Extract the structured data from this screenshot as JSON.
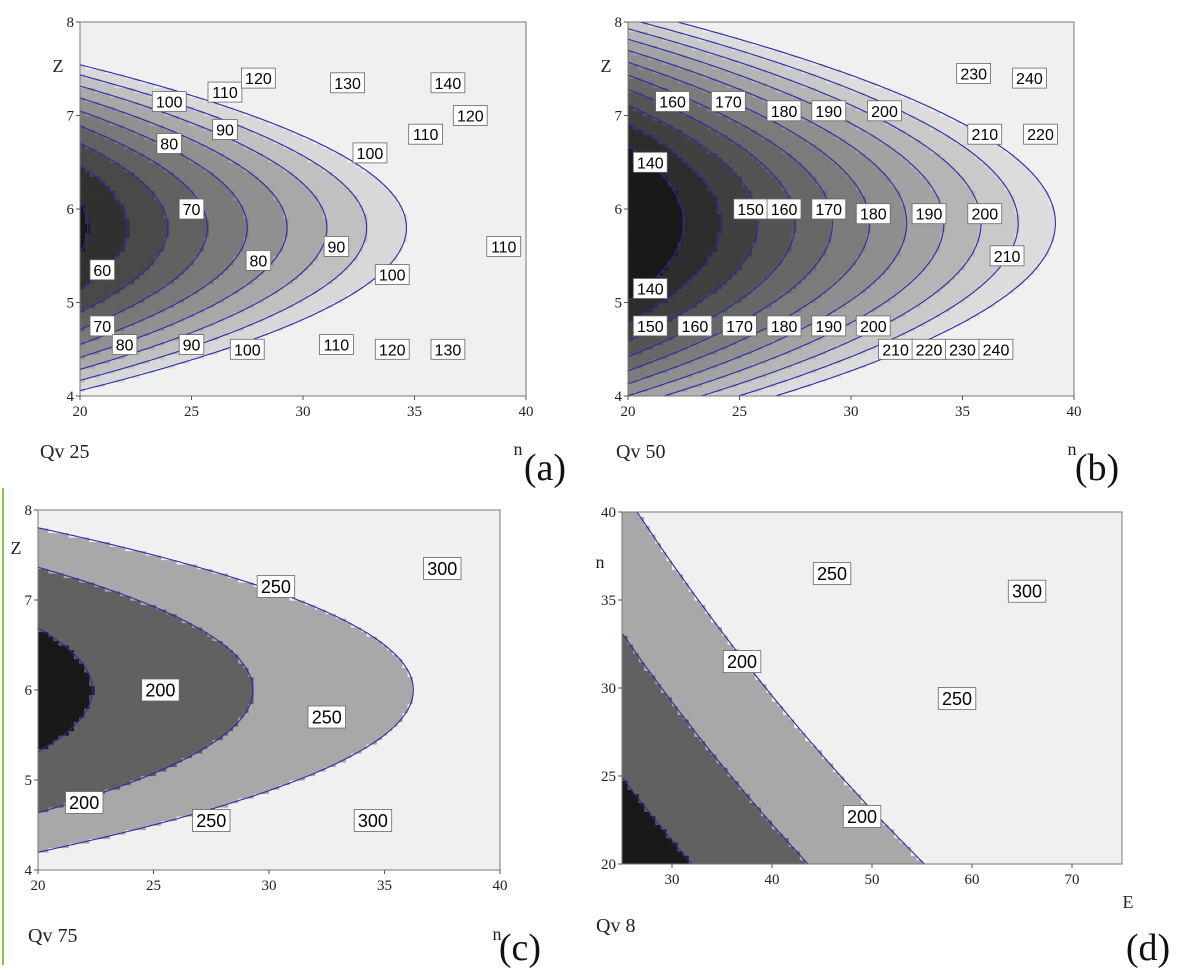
{
  "chart_data": [
    {
      "type": "contour",
      "panel_label": "(a)",
      "subtitle": "Qv 25",
      "xlabel": "n",
      "ylabel": "Z",
      "xlim": [
        20,
        40
      ],
      "ylim": [
        4,
        8
      ],
      "x_ticks": [
        "20",
        "25",
        "30",
        "35",
        "40"
      ],
      "y_ticks": [
        "4",
        "5",
        "6",
        "7",
        "8"
      ],
      "contour_levels": [
        60,
        70,
        80,
        90,
        100,
        110,
        120,
        130,
        140
      ],
      "contour_labels": [
        {
          "text": "60",
          "x": 21.0,
          "y": 5.35
        },
        {
          "text": "70",
          "x": 21.0,
          "y": 4.75
        },
        {
          "text": "70",
          "x": 25.0,
          "y": 6.0
        },
        {
          "text": "80",
          "x": 22.0,
          "y": 4.55
        },
        {
          "text": "80",
          "x": 24.0,
          "y": 6.7
        },
        {
          "text": "80",
          "x": 28.0,
          "y": 5.45
        },
        {
          "text": "90",
          "x": 25.0,
          "y": 4.55
        },
        {
          "text": "90",
          "x": 26.5,
          "y": 6.85
        },
        {
          "text": "90",
          "x": 31.5,
          "y": 5.6
        },
        {
          "text": "100",
          "x": 24.0,
          "y": 7.15
        },
        {
          "text": "100",
          "x": 27.5,
          "y": 4.5
        },
        {
          "text": "100",
          "x": 33.0,
          "y": 6.6
        },
        {
          "text": "100",
          "x": 34.0,
          "y": 5.3
        },
        {
          "text": "110",
          "x": 26.5,
          "y": 7.25
        },
        {
          "text": "110",
          "x": 31.5,
          "y": 4.55
        },
        {
          "text": "110",
          "x": 35.5,
          "y": 6.8
        },
        {
          "text": "110",
          "x": 39.0,
          "y": 5.6
        },
        {
          "text": "120",
          "x": 28.0,
          "y": 7.4
        },
        {
          "text": "120",
          "x": 34.0,
          "y": 4.5
        },
        {
          "text": "120",
          "x": 37.5,
          "y": 7.0
        },
        {
          "text": "130",
          "x": 32.0,
          "y": 7.35
        },
        {
          "text": "130",
          "x": 36.5,
          "y": 4.5
        },
        {
          "text": "140",
          "x": 36.5,
          "y": 7.35
        }
      ]
    },
    {
      "type": "contour",
      "panel_label": "(b)",
      "subtitle": "Qv 50",
      "xlabel": "n",
      "ylabel": "Z",
      "xlim": [
        20,
        40
      ],
      "ylim": [
        4,
        8
      ],
      "x_ticks": [
        "20",
        "25",
        "30",
        "35",
        "40"
      ],
      "y_ticks": [
        "4",
        "5",
        "6",
        "7",
        "8"
      ],
      "contour_levels": [
        140,
        150,
        160,
        170,
        180,
        190,
        200,
        210,
        220,
        230,
        240
      ],
      "contour_labels": [
        {
          "text": "160",
          "x": 22.0,
          "y": 7.15
        },
        {
          "text": "170",
          "x": 24.5,
          "y": 7.15
        },
        {
          "text": "180",
          "x": 27.0,
          "y": 7.05
        },
        {
          "text": "190",
          "x": 29.0,
          "y": 7.05
        },
        {
          "text": "200",
          "x": 31.5,
          "y": 7.05
        },
        {
          "text": "230",
          "x": 35.5,
          "y": 7.45
        },
        {
          "text": "240",
          "x": 38.0,
          "y": 7.4
        },
        {
          "text": "210",
          "x": 36.0,
          "y": 6.8
        },
        {
          "text": "220",
          "x": 38.5,
          "y": 6.8
        },
        {
          "text": "140",
          "x": 21.0,
          "y": 6.5
        },
        {
          "text": "150",
          "x": 25.5,
          "y": 6.0
        },
        {
          "text": "160",
          "x": 27.0,
          "y": 6.0
        },
        {
          "text": "170",
          "x": 29.0,
          "y": 6.0
        },
        {
          "text": "180",
          "x": 31.0,
          "y": 5.95
        },
        {
          "text": "190",
          "x": 33.5,
          "y": 5.95
        },
        {
          "text": "200",
          "x": 36.0,
          "y": 5.95
        },
        {
          "text": "210",
          "x": 37.0,
          "y": 5.5
        },
        {
          "text": "140",
          "x": 21.0,
          "y": 5.15
        },
        {
          "text": "150",
          "x": 21.0,
          "y": 4.75
        },
        {
          "text": "160",
          "x": 23.0,
          "y": 4.75
        },
        {
          "text": "170",
          "x": 25.0,
          "y": 4.75
        },
        {
          "text": "180",
          "x": 27.0,
          "y": 4.75
        },
        {
          "text": "190",
          "x": 29.0,
          "y": 4.75
        },
        {
          "text": "200",
          "x": 31.0,
          "y": 4.75
        },
        {
          "text": "210",
          "x": 32.0,
          "y": 4.5
        },
        {
          "text": "220",
          "x": 33.5,
          "y": 4.5
        },
        {
          "text": "230",
          "x": 35.0,
          "y": 4.5
        },
        {
          "text": "240",
          "x": 36.5,
          "y": 4.5
        }
      ]
    },
    {
      "type": "contour",
      "panel_label": "(c)",
      "subtitle": "Qv 75",
      "xlabel": "n",
      "ylabel": "Z",
      "xlim": [
        20,
        40
      ],
      "ylim": [
        4,
        8
      ],
      "x_ticks": [
        "20",
        "25",
        "30",
        "35",
        "40"
      ],
      "y_ticks": [
        "4",
        "5",
        "6",
        "7",
        "8"
      ],
      "contour_levels": [
        200,
        250,
        300
      ],
      "contour_labels": [
        {
          "text": "200",
          "x": 25.3,
          "y": 6.0
        },
        {
          "text": "200",
          "x": 22.0,
          "y": 4.75
        },
        {
          "text": "250",
          "x": 30.3,
          "y": 7.15
        },
        {
          "text": "250",
          "x": 32.5,
          "y": 5.7
        },
        {
          "text": "250",
          "x": 27.5,
          "y": 4.55
        },
        {
          "text": "300",
          "x": 37.5,
          "y": 7.35
        },
        {
          "text": "300",
          "x": 34.5,
          "y": 4.55
        }
      ]
    },
    {
      "type": "contour",
      "panel_label": "(d)",
      "subtitle": "Qv 8",
      "xlabel": "E",
      "ylabel": "n",
      "xlim": [
        25,
        75
      ],
      "ylim": [
        20,
        40
      ],
      "x_ticks": [
        "30",
        "40",
        "50",
        "60",
        "70"
      ],
      "y_ticks": [
        "20",
        "25",
        "30",
        "35",
        "40"
      ],
      "contour_levels": [
        200,
        250,
        300
      ],
      "contour_labels": [
        {
          "text": "250",
          "x": 46.0,
          "y": 36.5
        },
        {
          "text": "300",
          "x": 65.5,
          "y": 35.5
        },
        {
          "text": "200",
          "x": 37.0,
          "y": 31.5
        },
        {
          "text": "250",
          "x": 58.5,
          "y": 29.4
        },
        {
          "text": "200",
          "x": 49.0,
          "y": 22.7
        }
      ]
    }
  ]
}
